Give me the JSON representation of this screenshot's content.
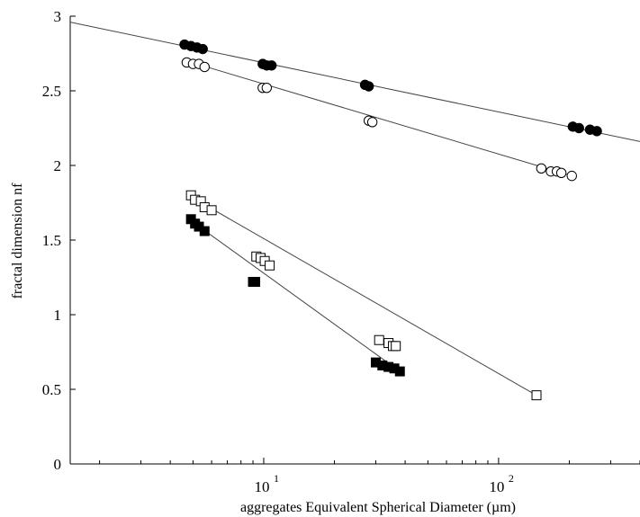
{
  "chart_data": {
    "type": "scatter",
    "title": "",
    "xlabel": "aggregates Equivalent Spherical Diameter (µm)",
    "ylabel": "fractal dimension nf",
    "xscale": "log",
    "xlim": [
      1.5,
      400
    ],
    "ylim": [
      0,
      3
    ],
    "x_tick_labels": [
      {
        "base": "10",
        "exp": "1"
      },
      {
        "base": "10",
        "exp": "2"
      }
    ],
    "y_ticks": [
      0,
      0.5,
      1,
      1.5,
      2,
      2.5,
      3
    ],
    "y_tick_labels": [
      "0",
      "0.5",
      "1",
      "1.5",
      "2",
      "2.5",
      "3"
    ],
    "grid": false,
    "legend": "none",
    "series": [
      {
        "marker": "filled-circle",
        "color": "#000000",
        "points": [
          [
            4.6,
            2.81
          ],
          [
            4.9,
            2.8
          ],
          [
            5.2,
            2.79
          ],
          [
            5.5,
            2.78
          ],
          [
            9.9,
            2.68
          ],
          [
            10.3,
            2.67
          ],
          [
            10.8,
            2.67
          ],
          [
            27,
            2.54
          ],
          [
            28,
            2.53
          ],
          [
            207,
            2.26
          ],
          [
            220,
            2.25
          ],
          [
            245,
            2.24
          ],
          [
            262,
            2.23
          ]
        ],
        "fit_line": [
          [
            1.5,
            2.96
          ],
          [
            400,
            2.16
          ]
        ]
      },
      {
        "marker": "open-circle",
        "color": "#000000",
        "points": [
          [
            4.7,
            2.69
          ],
          [
            5.0,
            2.68
          ],
          [
            5.3,
            2.68
          ],
          [
            5.6,
            2.66
          ],
          [
            9.9,
            2.52
          ],
          [
            10.3,
            2.52
          ],
          [
            28,
            2.3
          ],
          [
            29,
            2.29
          ],
          [
            152,
            1.98
          ],
          [
            167,
            1.96
          ],
          [
            177,
            1.96
          ],
          [
            185,
            1.95
          ],
          [
            205,
            1.93
          ]
        ],
        "fit_line": [
          [
            4.7,
            2.7
          ],
          [
            205,
            1.93
          ]
        ]
      },
      {
        "marker": "open-square",
        "color": "#000000",
        "points": [
          [
            4.9,
            1.8
          ],
          [
            5.1,
            1.77
          ],
          [
            5.4,
            1.76
          ],
          [
            5.6,
            1.72
          ],
          [
            6.0,
            1.7
          ],
          [
            9.3,
            1.39
          ],
          [
            9.7,
            1.38
          ],
          [
            10.1,
            1.36
          ],
          [
            10.6,
            1.33
          ],
          [
            31,
            0.83
          ],
          [
            34,
            0.81
          ],
          [
            35.5,
            0.79
          ],
          [
            36.5,
            0.79
          ],
          [
            145,
            0.46
          ]
        ],
        "fit_line": [
          [
            4.9,
            1.79
          ],
          [
            145,
            0.46
          ]
        ]
      },
      {
        "marker": "filled-square",
        "color": "#000000",
        "points": [
          [
            4.9,
            1.64
          ],
          [
            5.1,
            1.61
          ],
          [
            5.3,
            1.59
          ],
          [
            5.6,
            1.56
          ],
          [
            9.0,
            1.22
          ],
          [
            9.2,
            1.22
          ],
          [
            30,
            0.68
          ],
          [
            32,
            0.66
          ],
          [
            34,
            0.65
          ],
          [
            36,
            0.64
          ],
          [
            38,
            0.62
          ]
        ],
        "fit_line": [
          [
            4.9,
            1.63
          ],
          [
            38,
            0.62
          ]
        ]
      }
    ]
  }
}
